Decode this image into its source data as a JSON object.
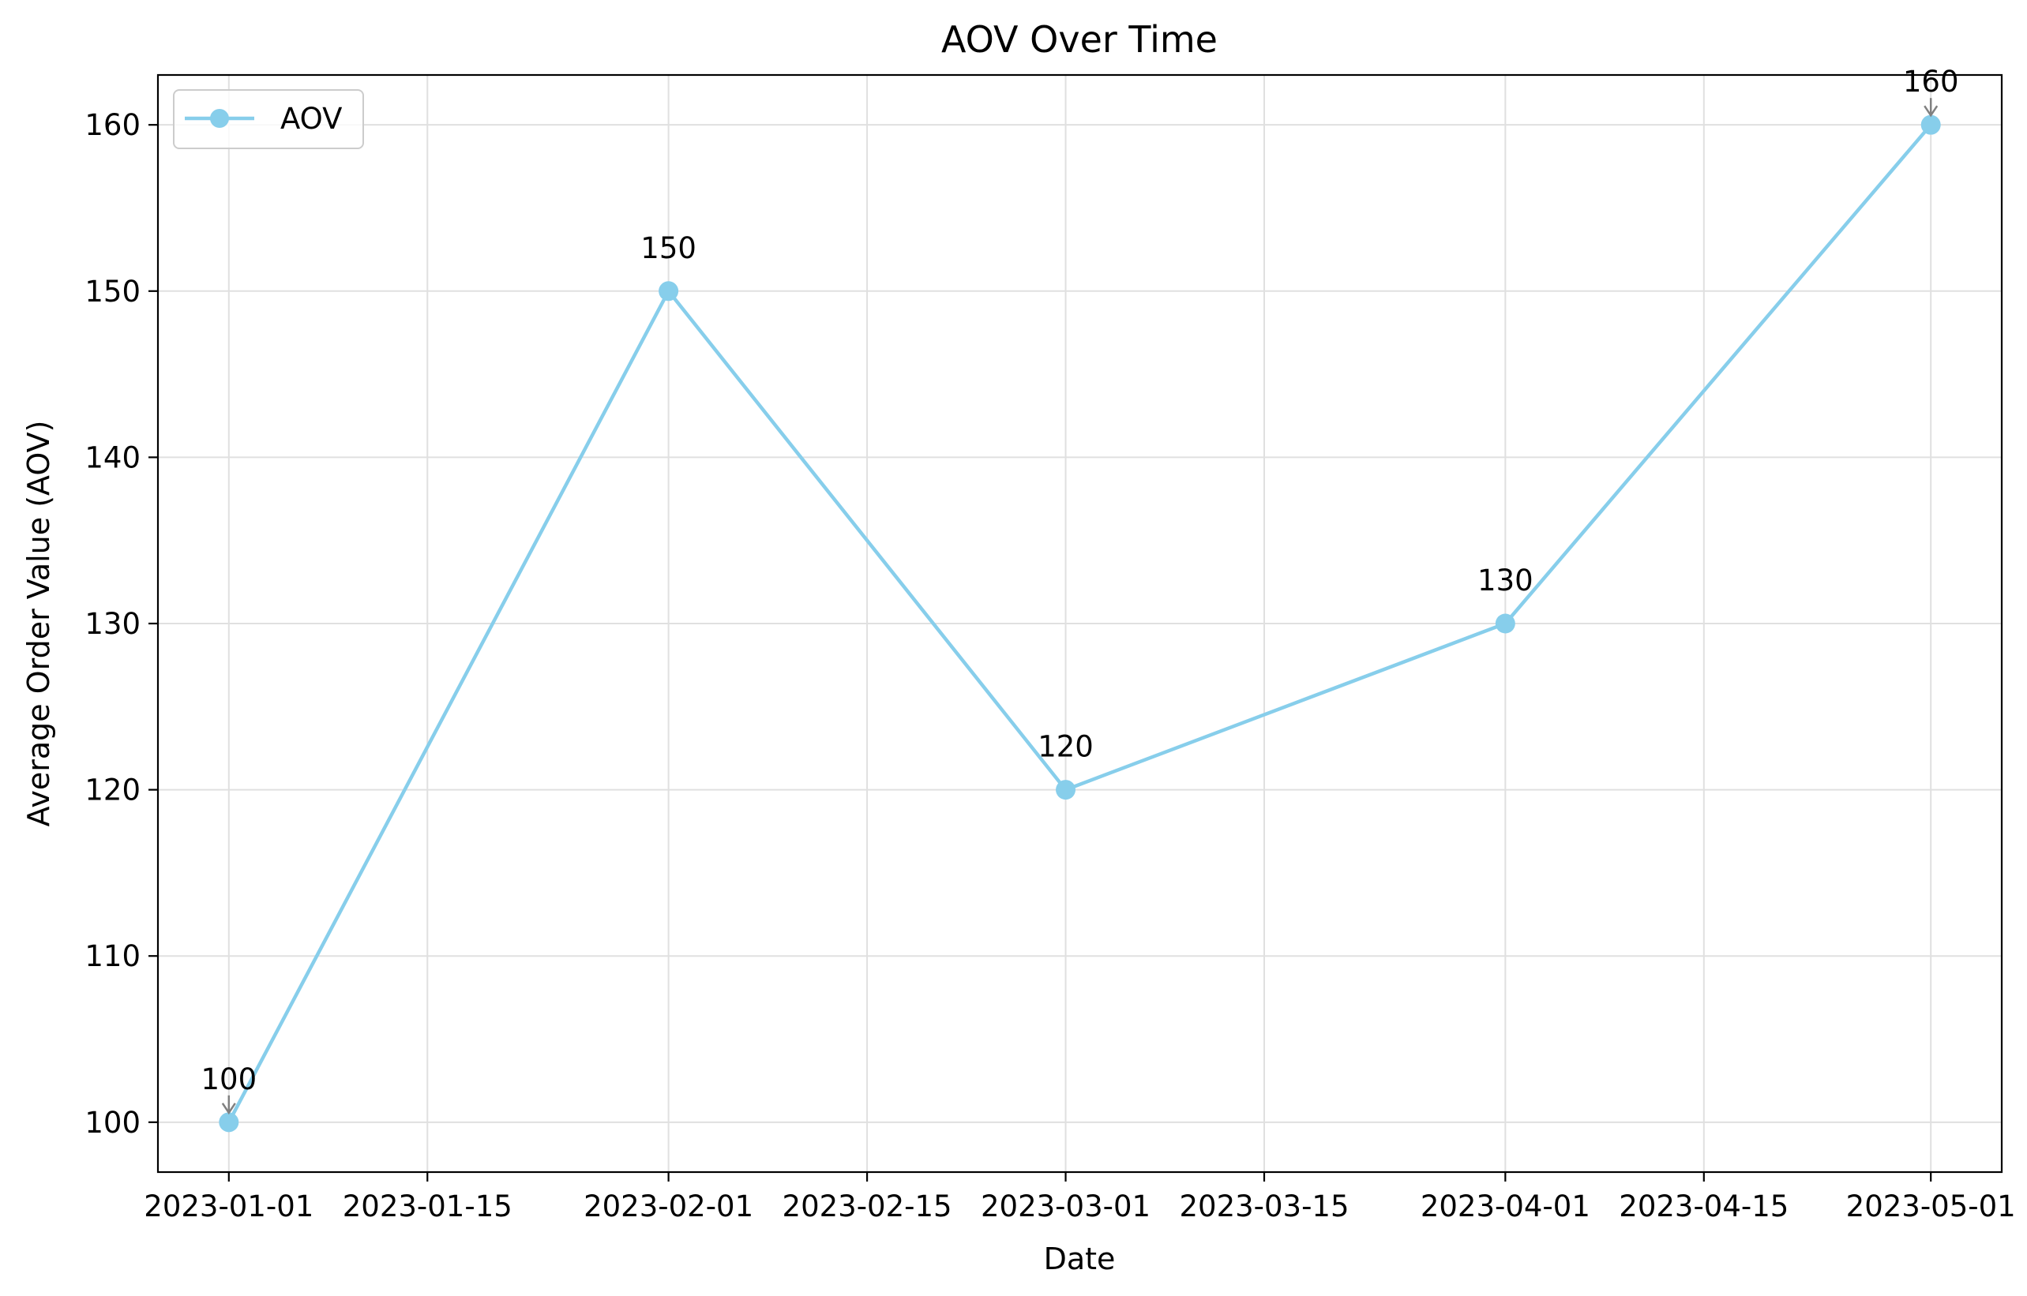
{
  "chart_data": {
    "type": "line",
    "title": "AOV Over Time",
    "xlabel": "Date",
    "ylabel": "Average Order Value (AOV)",
    "x": [
      "2023-01-01",
      "2023-02-01",
      "2023-03-01",
      "2023-04-01",
      "2023-05-01"
    ],
    "series": [
      {
        "name": "AOV",
        "values": [
          100,
          150,
          120,
          130,
          160
        ],
        "color": "#87ceeb"
      }
    ],
    "data_labels": [
      "100",
      "150",
      "120",
      "130",
      "160"
    ],
    "xlim": [
      "2022-12-27",
      "2023-05-06"
    ],
    "ylim": [
      97,
      163
    ],
    "xticks": [
      "2023-01-01",
      "2023-01-15",
      "2023-02-01",
      "2023-02-15",
      "2023-03-01",
      "2023-03-15",
      "2023-04-01",
      "2023-04-15",
      "2023-05-01"
    ],
    "yticks": [
      100,
      110,
      120,
      130,
      140,
      150,
      160
    ],
    "grid": true,
    "legend_position": "top-left",
    "colors": {
      "line": "#87ceeb",
      "marker": "#87ceeb",
      "grid": "#e0e0e0",
      "arrow": "#808080",
      "axes": "#000000"
    }
  }
}
